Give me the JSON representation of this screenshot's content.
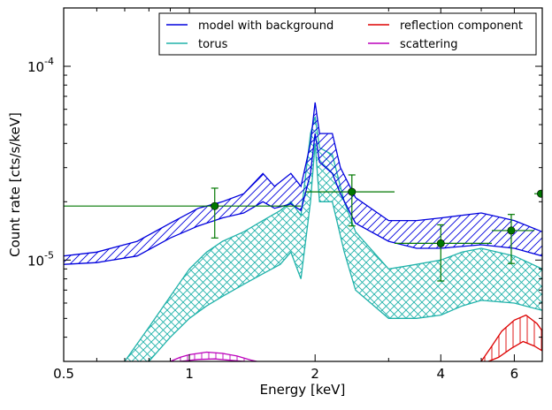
{
  "chart_data": {
    "type": "line",
    "title": "",
    "xlabel": "Energy [keV]",
    "ylabel": "Count rate [cts/s/keV]",
    "xscale": "log",
    "yscale": "log",
    "xlim": [
      0.5,
      7.0
    ],
    "ylim": [
      3e-06,
      0.0002
    ],
    "grid": false,
    "legend_position": "top-right",
    "x_ticks": [
      {
        "value": 0.5,
        "label": "0.5"
      },
      {
        "value": 1,
        "label": "1"
      },
      {
        "value": 2,
        "label": "2"
      },
      {
        "value": 4,
        "label": "4"
      },
      {
        "value": 6,
        "label": "6"
      }
    ],
    "y_ticks": [
      {
        "value": 1e-05,
        "base": "10",
        "exp": "-5"
      },
      {
        "value": 0.0001,
        "base": "10",
        "exp": "-4"
      }
    ],
    "series": [
      {
        "name": "model with background",
        "color": "#0000dd",
        "hatch": "diagonal",
        "upper": [
          [
            0.5,
            1.05e-05
          ],
          [
            0.6,
            1.1e-05
          ],
          [
            0.75,
            1.25e-05
          ],
          [
            0.9,
            1.55e-05
          ],
          [
            1.05,
            1.85e-05
          ],
          [
            1.2,
            2e-05
          ],
          [
            1.35,
            2.2e-05
          ],
          [
            1.5,
            2.8e-05
          ],
          [
            1.6,
            2.4e-05
          ],
          [
            1.75,
            2.8e-05
          ],
          [
            1.85,
            2.4e-05
          ],
          [
            1.95,
            4e-05
          ],
          [
            2.0,
            6.5e-05
          ],
          [
            2.05,
            4.5e-05
          ],
          [
            2.2,
            4.5e-05
          ],
          [
            2.3,
            3e-05
          ],
          [
            2.5,
            2.1e-05
          ],
          [
            3.0,
            1.6e-05
          ],
          [
            3.5,
            1.6e-05
          ],
          [
            4.0,
            1.65e-05
          ],
          [
            5.0,
            1.75e-05
          ],
          [
            6.0,
            1.6e-05
          ],
          [
            7.0,
            1.4e-05
          ]
        ],
        "lower": [
          [
            0.5,
            9.5e-06
          ],
          [
            0.6,
            9.7e-06
          ],
          [
            0.75,
            1.05e-05
          ],
          [
            0.9,
            1.3e-05
          ],
          [
            1.05,
            1.5e-05
          ],
          [
            1.2,
            1.65e-05
          ],
          [
            1.35,
            1.75e-05
          ],
          [
            1.5,
            2e-05
          ],
          [
            1.6,
            1.85e-05
          ],
          [
            1.75,
            1.95e-05
          ],
          [
            1.85,
            1.8e-05
          ],
          [
            1.95,
            2.8e-05
          ],
          [
            2.0,
            4.5e-05
          ],
          [
            2.05,
            3.2e-05
          ],
          [
            2.2,
            2.8e-05
          ],
          [
            2.3,
            2.2e-05
          ],
          [
            2.5,
            1.55e-05
          ],
          [
            3.0,
            1.25e-05
          ],
          [
            3.5,
            1.15e-05
          ],
          [
            4.0,
            1.15e-05
          ],
          [
            5.0,
            1.2e-05
          ],
          [
            6.0,
            1.15e-05
          ],
          [
            7.0,
            1.05e-05
          ]
        ]
      },
      {
        "name": "torus",
        "color": "#20b2aa",
        "hatch": "cross",
        "upper": [
          [
            0.7,
            3e-06
          ],
          [
            0.8,
            4.5e-06
          ],
          [
            0.9,
            6.5e-06
          ],
          [
            1.0,
            9e-06
          ],
          [
            1.1,
            1.1e-05
          ],
          [
            1.2,
            1.25e-05
          ],
          [
            1.35,
            1.4e-05
          ],
          [
            1.5,
            1.6e-05
          ],
          [
            1.65,
            1.8e-05
          ],
          [
            1.75,
            2e-05
          ],
          [
            1.85,
            1.7e-05
          ],
          [
            1.95,
            4.5e-05
          ],
          [
            2.0,
            5.5e-05
          ],
          [
            2.05,
            3.8e-05
          ],
          [
            2.2,
            3.5e-05
          ],
          [
            2.35,
            2e-05
          ],
          [
            2.5,
            1.4e-05
          ],
          [
            3.0,
            9e-06
          ],
          [
            3.5,
            9.5e-06
          ],
          [
            4.0,
            1e-05
          ],
          [
            4.5,
            1.1e-05
          ],
          [
            5.0,
            1.15e-05
          ],
          [
            6.0,
            1.05e-05
          ],
          [
            7.0,
            9e-06
          ]
        ],
        "lower": [
          [
            0.8,
            3e-06
          ],
          [
            0.9,
            4e-06
          ],
          [
            1.0,
            5e-06
          ],
          [
            1.1,
            5.8e-06
          ],
          [
            1.2,
            6.5e-06
          ],
          [
            1.35,
            7.5e-06
          ],
          [
            1.5,
            8.5e-06
          ],
          [
            1.65,
            9.5e-06
          ],
          [
            1.75,
            1.1e-05
          ],
          [
            1.85,
            8e-06
          ],
          [
            1.95,
            2e-05
          ],
          [
            2.0,
            4e-05
          ],
          [
            2.05,
            2e-05
          ],
          [
            2.2,
            2e-05
          ],
          [
            2.35,
            1.1e-05
          ],
          [
            2.5,
            7e-06
          ],
          [
            3.0,
            5e-06
          ],
          [
            3.5,
            5e-06
          ],
          [
            4.0,
            5.2e-06
          ],
          [
            4.5,
            5.8e-06
          ],
          [
            5.0,
            6.2e-06
          ],
          [
            6.0,
            6e-06
          ],
          [
            7.0,
            5.5e-06
          ]
        ]
      },
      {
        "name": "reflection component",
        "color": "#dd0000",
        "hatch": "vertical",
        "upper": [
          [
            5.0,
            3e-06
          ],
          [
            5.3,
            3.6e-06
          ],
          [
            5.6,
            4.3e-06
          ],
          [
            6.0,
            4.9e-06
          ],
          [
            6.4,
            5.2e-06
          ],
          [
            6.8,
            4.7e-06
          ],
          [
            7.0,
            4.3e-06
          ]
        ],
        "lower": [
          [
            5.2,
            3e-06
          ],
          [
            5.5,
            3.15e-06
          ],
          [
            5.9,
            3.5e-06
          ],
          [
            6.3,
            3.8e-06
          ],
          [
            6.7,
            3.6e-06
          ],
          [
            7.0,
            3.4e-06
          ]
        ]
      },
      {
        "name": "scattering",
        "color": "#bb00bb",
        "hatch": "vertical",
        "upper": [
          [
            0.9,
            3e-06
          ],
          [
            0.95,
            3.15e-06
          ],
          [
            1.0,
            3.25e-06
          ],
          [
            1.1,
            3.35e-06
          ],
          [
            1.2,
            3.3e-06
          ],
          [
            1.3,
            3.2e-06
          ],
          [
            1.4,
            3.05e-06
          ],
          [
            1.45,
            3e-06
          ]
        ],
        "lower": [
          [
            0.95,
            3e-06
          ],
          [
            1.05,
            3.07e-06
          ],
          [
            1.15,
            3.09e-06
          ],
          [
            1.25,
            3.04e-06
          ],
          [
            1.35,
            3e-06
          ]
        ]
      }
    ],
    "data_points": {
      "color": "#007700",
      "points": [
        {
          "x": 1.15,
          "y": 1.9e-05,
          "xerr": [
            0.5,
            1.85
          ],
          "yerr": [
            1.3e-05,
            2.35e-05
          ]
        },
        {
          "x": 2.45,
          "y": 2.25e-05,
          "xerr": [
            1.9,
            3.1
          ],
          "yerr": [
            1.5e-05,
            2.75e-05
          ]
        },
        {
          "x": 4.0,
          "y": 1.22e-05,
          "xerr": [
            3.1,
            5.3
          ],
          "yerr": [
            7.8e-06,
            1.52e-05
          ]
        },
        {
          "x": 5.9,
          "y": 1.42e-05,
          "xerr": [
            5.3,
            6.7
          ],
          "yerr": [
            9.6e-06,
            1.72e-05
          ]
        },
        {
          "x": 6.95,
          "y": 2.2e-05,
          "xerr": [
            6.7,
            7.0
          ],
          "yerr": [
            2.2e-05,
            2.2e-05
          ]
        }
      ]
    }
  }
}
